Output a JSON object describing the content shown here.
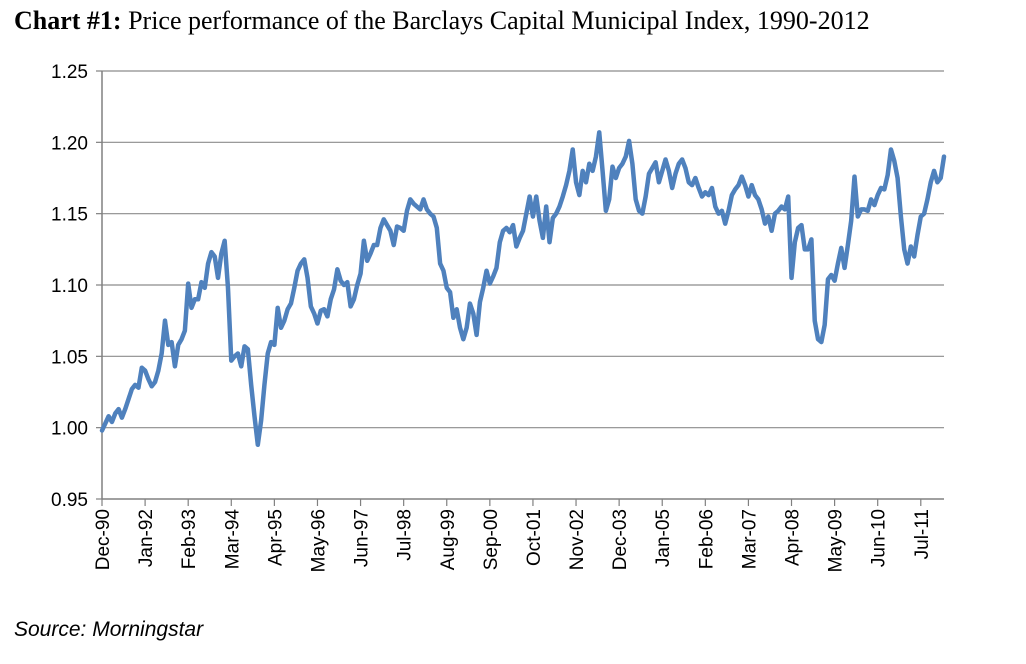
{
  "chart_title": {
    "lead": "Chart #1:",
    "text": " Price performance of the Barclays Capital Municipal Index, 1990-2012"
  },
  "source": "Source: Morningstar",
  "chart_data": {
    "type": "line",
    "title": "Chart #1: Price performance of the Barclays Capital Municipal Index, 1990-2012",
    "xlabel": "",
    "ylabel": "",
    "ylim": [
      0.95,
      1.25
    ],
    "yticks": [
      "0.95",
      "1.00",
      "1.05",
      "1.10",
      "1.15",
      "1.20",
      "1.25"
    ],
    "xticks": [
      "Dec-90",
      "Jan-92",
      "Feb-93",
      "Mar-94",
      "Apr-95",
      "May-96",
      "Jun-97",
      "Jul-98",
      "Aug-99",
      "Sep-00",
      "Oct-01",
      "Nov-02",
      "Dec-03",
      "Jan-05",
      "Feb-06",
      "Mar-07",
      "Apr-08",
      "May-09",
      "Jun-10",
      "Jul-11"
    ],
    "grid": "horizontal",
    "legend": "none",
    "line_color": "#4f81bd",
    "series": [
      {
        "points": [
          [
            "1990-12",
            0.998
          ],
          [
            "1991-01",
            1.003
          ],
          [
            "1991-02",
            1.008
          ],
          [
            "1991-03",
            1.004
          ],
          [
            "1991-04",
            1.01
          ],
          [
            "1991-05",
            1.013
          ],
          [
            "1991-06",
            1.007
          ],
          [
            "1991-07",
            1.013
          ],
          [
            "1991-08",
            1.02
          ],
          [
            "1991-09",
            1.027
          ],
          [
            "1991-10",
            1.03
          ],
          [
            "1991-11",
            1.028
          ],
          [
            "1991-12",
            1.042
          ],
          [
            "1992-01",
            1.04
          ],
          [
            "1992-02",
            1.034
          ],
          [
            "1992-03",
            1.029
          ],
          [
            "1992-04",
            1.032
          ],
          [
            "1992-05",
            1.04
          ],
          [
            "1992-06",
            1.052
          ],
          [
            "1992-07",
            1.075
          ],
          [
            "1992-08",
            1.058
          ],
          [
            "1992-09",
            1.06
          ],
          [
            "1992-10",
            1.043
          ],
          [
            "1992-11",
            1.058
          ],
          [
            "1992-12",
            1.062
          ],
          [
            "1993-01",
            1.068
          ],
          [
            "1993-02",
            1.101
          ],
          [
            "1993-03",
            1.084
          ],
          [
            "1993-04",
            1.09
          ],
          [
            "1993-05",
            1.09
          ],
          [
            "1993-06",
            1.102
          ],
          [
            "1993-07",
            1.098
          ],
          [
            "1993-08",
            1.115
          ],
          [
            "1993-09",
            1.123
          ],
          [
            "1993-10",
            1.12
          ],
          [
            "1993-11",
            1.105
          ],
          [
            "1993-12",
            1.122
          ],
          [
            "1994-01",
            1.131
          ],
          [
            "1994-02",
            1.098
          ],
          [
            "1994-03",
            1.047
          ],
          [
            "1994-04",
            1.05
          ],
          [
            "1994-05",
            1.052
          ],
          [
            "1994-06",
            1.043
          ],
          [
            "1994-07",
            1.057
          ],
          [
            "1994-08",
            1.055
          ],
          [
            "1994-09",
            1.03
          ],
          [
            "1994-10",
            1.008
          ],
          [
            "1994-11",
            0.988
          ],
          [
            "1994-12",
            1.005
          ],
          [
            "1995-01",
            1.03
          ],
          [
            "1995-02",
            1.052
          ],
          [
            "1995-03",
            1.06
          ],
          [
            "1995-04",
            1.058
          ],
          [
            "1995-05",
            1.084
          ],
          [
            "1995-06",
            1.07
          ],
          [
            "1995-07",
            1.075
          ],
          [
            "1995-08",
            1.083
          ],
          [
            "1995-09",
            1.087
          ],
          [
            "1995-10",
            1.098
          ],
          [
            "1995-11",
            1.11
          ],
          [
            "1995-12",
            1.115
          ],
          [
            "1996-01",
            1.118
          ],
          [
            "1996-02",
            1.105
          ],
          [
            "1996-03",
            1.085
          ],
          [
            "1996-04",
            1.08
          ],
          [
            "1996-05",
            1.073
          ],
          [
            "1996-06",
            1.082
          ],
          [
            "1996-07",
            1.083
          ],
          [
            "1996-08",
            1.078
          ],
          [
            "1996-09",
            1.09
          ],
          [
            "1996-10",
            1.097
          ],
          [
            "1996-11",
            1.111
          ],
          [
            "1996-12",
            1.103
          ],
          [
            "1997-01",
            1.1
          ],
          [
            "1997-02",
            1.102
          ],
          [
            "1997-03",
            1.085
          ],
          [
            "1997-04",
            1.09
          ],
          [
            "1997-05",
            1.1
          ],
          [
            "1997-06",
            1.108
          ],
          [
            "1997-07",
            1.131
          ],
          [
            "1997-08",
            1.117
          ],
          [
            "1997-09",
            1.122
          ],
          [
            "1997-10",
            1.128
          ],
          [
            "1997-11",
            1.128
          ],
          [
            "1997-12",
            1.14
          ],
          [
            "1998-01",
            1.146
          ],
          [
            "1998-02",
            1.142
          ],
          [
            "1998-03",
            1.138
          ],
          [
            "1998-04",
            1.128
          ],
          [
            "1998-05",
            1.141
          ],
          [
            "1998-06",
            1.14
          ],
          [
            "1998-07",
            1.138
          ],
          [
            "1998-08",
            1.152
          ],
          [
            "1998-09",
            1.16
          ],
          [
            "1998-10",
            1.157
          ],
          [
            "1998-11",
            1.155
          ],
          [
            "1998-12",
            1.153
          ],
          [
            "1999-01",
            1.16
          ],
          [
            "1999-02",
            1.153
          ],
          [
            "1999-03",
            1.15
          ],
          [
            "1999-04",
            1.148
          ],
          [
            "1999-05",
            1.14
          ],
          [
            "1999-06",
            1.115
          ],
          [
            "1999-07",
            1.11
          ],
          [
            "1999-08",
            1.098
          ],
          [
            "1999-09",
            1.095
          ],
          [
            "1999-10",
            1.077
          ],
          [
            "1999-11",
            1.083
          ],
          [
            "1999-12",
            1.07
          ],
          [
            "2000-01",
            1.062
          ],
          [
            "2000-02",
            1.07
          ],
          [
            "2000-03",
            1.087
          ],
          [
            "2000-04",
            1.08
          ],
          [
            "2000-05",
            1.065
          ],
          [
            "2000-06",
            1.088
          ],
          [
            "2000-07",
            1.098
          ],
          [
            "2000-08",
            1.11
          ],
          [
            "2000-09",
            1.101
          ],
          [
            "2000-10",
            1.106
          ],
          [
            "2000-11",
            1.112
          ],
          [
            "2000-12",
            1.13
          ],
          [
            "2001-01",
            1.138
          ],
          [
            "2001-02",
            1.14
          ],
          [
            "2001-03",
            1.137
          ],
          [
            "2001-04",
            1.142
          ],
          [
            "2001-05",
            1.127
          ],
          [
            "2001-06",
            1.133
          ],
          [
            "2001-07",
            1.138
          ],
          [
            "2001-08",
            1.15
          ],
          [
            "2001-09",
            1.162
          ],
          [
            "2001-10",
            1.148
          ],
          [
            "2001-11",
            1.162
          ],
          [
            "2001-12",
            1.145
          ],
          [
            "2002-01",
            1.133
          ],
          [
            "2002-02",
            1.155
          ],
          [
            "2002-03",
            1.13
          ],
          [
            "2002-04",
            1.147
          ],
          [
            "2002-05",
            1.15
          ],
          [
            "2002-06",
            1.155
          ],
          [
            "2002-07",
            1.162
          ],
          [
            "2002-08",
            1.17
          ],
          [
            "2002-09",
            1.18
          ],
          [
            "2002-10",
            1.195
          ],
          [
            "2002-11",
            1.172
          ],
          [
            "2002-12",
            1.163
          ],
          [
            "2003-01",
            1.18
          ],
          [
            "2003-02",
            1.172
          ],
          [
            "2003-03",
            1.185
          ],
          [
            "2003-04",
            1.18
          ],
          [
            "2003-05",
            1.19
          ],
          [
            "2003-06",
            1.207
          ],
          [
            "2003-07",
            1.18
          ],
          [
            "2003-08",
            1.152
          ],
          [
            "2003-09",
            1.16
          ],
          [
            "2003-10",
            1.183
          ],
          [
            "2003-11",
            1.175
          ],
          [
            "2003-12",
            1.182
          ],
          [
            "2004-01",
            1.185
          ],
          [
            "2004-02",
            1.19
          ],
          [
            "2004-03",
            1.201
          ],
          [
            "2004-04",
            1.185
          ],
          [
            "2004-05",
            1.16
          ],
          [
            "2004-06",
            1.152
          ],
          [
            "2004-07",
            1.15
          ],
          [
            "2004-08",
            1.162
          ],
          [
            "2004-09",
            1.178
          ],
          [
            "2004-10",
            1.182
          ],
          [
            "2004-11",
            1.186
          ],
          [
            "2004-12",
            1.172
          ],
          [
            "2005-01",
            1.18
          ],
          [
            "2005-02",
            1.188
          ],
          [
            "2005-03",
            1.18
          ],
          [
            "2005-04",
            1.168
          ],
          [
            "2005-05",
            1.178
          ],
          [
            "2005-06",
            1.185
          ],
          [
            "2005-07",
            1.188
          ],
          [
            "2005-08",
            1.182
          ],
          [
            "2005-09",
            1.172
          ],
          [
            "2005-10",
            1.17
          ],
          [
            "2005-11",
            1.175
          ],
          [
            "2005-12",
            1.168
          ],
          [
            "2006-01",
            1.162
          ],
          [
            "2006-02",
            1.165
          ],
          [
            "2006-03",
            1.163
          ],
          [
            "2006-04",
            1.168
          ],
          [
            "2006-05",
            1.155
          ],
          [
            "2006-06",
            1.15
          ],
          [
            "2006-07",
            1.152
          ],
          [
            "2006-08",
            1.143
          ],
          [
            "2006-09",
            1.152
          ],
          [
            "2006-10",
            1.163
          ],
          [
            "2006-11",
            1.167
          ],
          [
            "2006-12",
            1.17
          ],
          [
            "2007-01",
            1.176
          ],
          [
            "2007-02",
            1.17
          ],
          [
            "2007-03",
            1.162
          ],
          [
            "2007-04",
            1.17
          ],
          [
            "2007-05",
            1.163
          ],
          [
            "2007-06",
            1.16
          ],
          [
            "2007-07",
            1.153
          ],
          [
            "2007-08",
            1.143
          ],
          [
            "2007-09",
            1.148
          ],
          [
            "2007-10",
            1.138
          ],
          [
            "2007-11",
            1.15
          ],
          [
            "2007-12",
            1.152
          ],
          [
            "2008-01",
            1.155
          ],
          [
            "2008-02",
            1.153
          ],
          [
            "2008-03",
            1.162
          ],
          [
            "2008-04",
            1.105
          ],
          [
            "2008-05",
            1.13
          ],
          [
            "2008-06",
            1.14
          ],
          [
            "2008-07",
            1.142
          ],
          [
            "2008-08",
            1.125
          ],
          [
            "2008-09",
            1.125
          ],
          [
            "2008-10",
            1.132
          ],
          [
            "2008-11",
            1.075
          ],
          [
            "2008-12",
            1.062
          ],
          [
            "2009-01",
            1.06
          ],
          [
            "2009-02",
            1.072
          ],
          [
            "2009-03",
            1.104
          ],
          [
            "2009-04",
            1.107
          ],
          [
            "2009-05",
            1.103
          ],
          [
            "2009-06",
            1.115
          ],
          [
            "2009-07",
            1.126
          ],
          [
            "2009-08",
            1.112
          ],
          [
            "2009-09",
            1.128
          ],
          [
            "2009-10",
            1.145
          ],
          [
            "2009-11",
            1.176
          ],
          [
            "2009-12",
            1.148
          ],
          [
            "2010-01",
            1.153
          ],
          [
            "2010-02",
            1.153
          ],
          [
            "2010-03",
            1.152
          ],
          [
            "2010-04",
            1.16
          ],
          [
            "2010-05",
            1.156
          ],
          [
            "2010-06",
            1.163
          ],
          [
            "2010-07",
            1.168
          ],
          [
            "2010-08",
            1.167
          ],
          [
            "2010-09",
            1.177
          ],
          [
            "2010-10",
            1.195
          ],
          [
            "2010-11",
            1.187
          ],
          [
            "2010-12",
            1.175
          ],
          [
            "2011-01",
            1.148
          ],
          [
            "2011-02",
            1.125
          ],
          [
            "2011-03",
            1.115
          ],
          [
            "2011-04",
            1.127
          ],
          [
            "2011-05",
            1.12
          ],
          [
            "2011-06",
            1.135
          ],
          [
            "2011-07",
            1.148
          ],
          [
            "2011-08",
            1.15
          ],
          [
            "2011-09",
            1.16
          ],
          [
            "2011-10",
            1.172
          ],
          [
            "2011-11",
            1.18
          ],
          [
            "2011-12",
            1.172
          ],
          [
            "2012-01",
            1.175
          ],
          [
            "2012-02",
            1.19
          ]
        ]
      }
    ]
  }
}
